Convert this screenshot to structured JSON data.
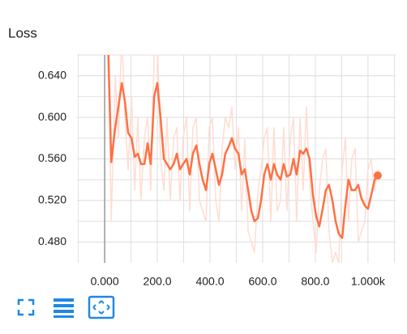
{
  "chart_data": {
    "type": "line",
    "title": "Loss",
    "x": [
      12,
      25,
      40,
      52,
      65,
      77,
      89,
      102,
      114,
      126,
      138,
      151,
      163,
      175,
      188,
      200,
      212,
      225,
      237,
      249,
      262,
      274,
      286,
      298,
      311,
      323,
      335,
      348,
      360,
      372,
      385,
      397,
      409,
      422,
      434,
      446,
      458,
      471,
      483,
      495,
      508,
      520,
      532,
      545,
      557,
      569,
      582,
      594,
      606,
      618,
      631,
      643,
      655,
      668,
      680,
      692,
      705,
      717,
      729,
      742,
      754,
      766,
      778,
      791,
      803,
      815,
      828,
      840,
      852,
      865,
      877,
      889,
      902,
      914,
      926,
      938,
      951,
      963,
      975,
      988,
      1000,
      1012,
      1025,
      1037
    ],
    "series": [
      {
        "color": "#ffddd2",
        "values": [
          0.72,
          0.5,
          0.64,
          0.58,
          0.68,
          0.6,
          0.55,
          0.62,
          0.53,
          0.6,
          0.52,
          0.58,
          0.6,
          0.53,
          0.66,
          0.68,
          0.56,
          0.53,
          0.6,
          0.52,
          0.58,
          0.59,
          0.52,
          0.58,
          0.6,
          0.51,
          0.59,
          0.6,
          0.52,
          0.51,
          0.5,
          0.59,
          0.6,
          0.52,
          0.5,
          0.57,
          0.6,
          0.59,
          0.61,
          0.55,
          0.59,
          0.51,
          0.58,
          0.49,
          0.48,
          0.47,
          0.53,
          0.55,
          0.58,
          0.59,
          0.5,
          0.59,
          0.51,
          0.52,
          0.59,
          0.51,
          0.58,
          0.6,
          0.5,
          0.6,
          0.53,
          0.61,
          0.54,
          0.5,
          0.47,
          0.53,
          0.56,
          0.57,
          0.49,
          0.46,
          0.47,
          0.46,
          0.55,
          0.58,
          0.5,
          0.56,
          0.57,
          0.48,
          0.49,
          0.5,
          0.55,
          0.56,
          0.53,
          0.55
        ]
      },
      {
        "color": "#ff7043",
        "values": [
          0.68,
          0.557,
          0.59,
          0.61,
          0.633,
          0.615,
          0.585,
          0.58,
          0.562,
          0.565,
          0.555,
          0.555,
          0.575,
          0.555,
          0.62,
          0.633,
          0.6,
          0.56,
          0.555,
          0.55,
          0.555,
          0.565,
          0.55,
          0.555,
          0.56,
          0.545,
          0.565,
          0.573,
          0.555,
          0.54,
          0.53,
          0.555,
          0.565,
          0.55,
          0.535,
          0.545,
          0.565,
          0.572,
          0.58,
          0.57,
          0.565,
          0.545,
          0.55,
          0.53,
          0.51,
          0.5,
          0.503,
          0.52,
          0.545,
          0.555,
          0.54,
          0.555,
          0.545,
          0.54,
          0.555,
          0.543,
          0.545,
          0.56,
          0.545,
          0.568,
          0.565,
          0.57,
          0.56,
          0.525,
          0.505,
          0.495,
          0.512,
          0.53,
          0.535,
          0.52,
          0.5,
          0.488,
          0.484,
          0.515,
          0.54,
          0.53,
          0.53,
          0.535,
          0.522,
          0.515,
          0.512,
          0.525,
          0.54,
          0.544
        ]
      }
    ],
    "xlim": [
      -105,
      1105
    ],
    "ylim": [
      0.46,
      0.66
    ],
    "xticks": [
      {
        "value": 0,
        "label": "0.000"
      },
      {
        "value": 200,
        "label": "200.0"
      },
      {
        "value": 400,
        "label": "400.0"
      },
      {
        "value": 600,
        "label": "600.0"
      },
      {
        "value": 800,
        "label": "800.0"
      },
      {
        "value": 1000,
        "label": "1.000k"
      }
    ],
    "yticks": [
      {
        "value": 0.48,
        "label": "0.480"
      },
      {
        "value": 0.52,
        "label": "0.520"
      },
      {
        "value": 0.56,
        "label": "0.560"
      },
      {
        "value": 0.6,
        "label": "0.600"
      },
      {
        "value": 0.64,
        "label": "0.640"
      }
    ],
    "grid": true
  }
}
